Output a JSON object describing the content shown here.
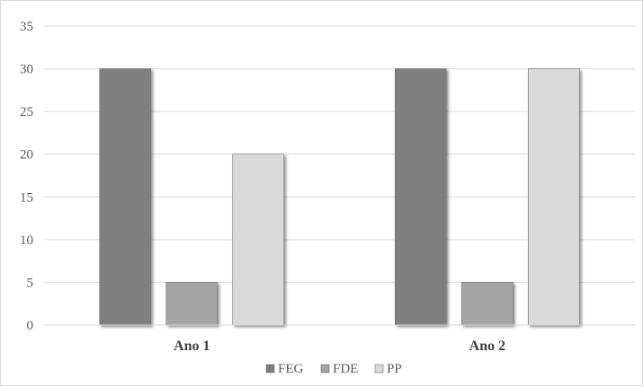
{
  "chart_data": {
    "type": "bar",
    "categories": [
      "Ano 1",
      "Ano 2"
    ],
    "series": [
      {
        "name": "FEG",
        "values": [
          30,
          30
        ],
        "color": "#7f7f7f"
      },
      {
        "name": "FDE",
        "values": [
          5,
          5
        ],
        "color": "#a5a5a5"
      },
      {
        "name": "PP",
        "values": [
          20,
          30
        ],
        "color": "#d9d9d9"
      }
    ],
    "ylim": [
      0,
      35
    ],
    "yticks": [
      0,
      5,
      10,
      15,
      20,
      25,
      30,
      35
    ],
    "grid": true,
    "legend_position": "bottom"
  }
}
